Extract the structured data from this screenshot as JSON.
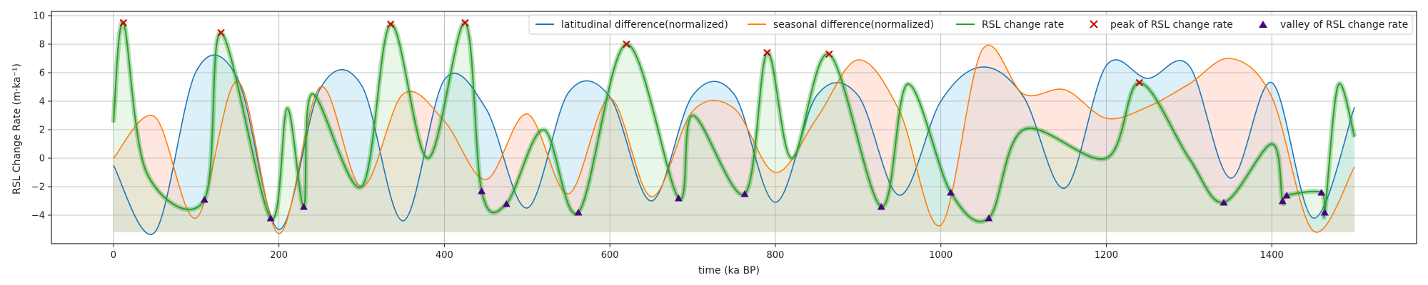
{
  "chart_data": {
    "type": "line",
    "xlabel": "time (ka BP)",
    "ylabel": "RSL Change Rate (m·ka⁻¹)",
    "xlim": [
      -75,
      1575
    ],
    "ylim": [
      -6.0,
      10.3
    ],
    "xticks": [
      0,
      200,
      400,
      600,
      800,
      1000,
      1200,
      1400
    ],
    "yticks": [
      -4,
      -2,
      0,
      2,
      4,
      6,
      8,
      10
    ],
    "grid": true,
    "legend_position": "top-right",
    "fill_floor": -5.2,
    "series": [
      {
        "name": "latitudinal difference(normalized)",
        "color": "#1f77b4",
        "x": [
          0,
          50,
          100,
          150,
          200,
          250,
          300,
          350,
          400,
          450,
          500,
          550,
          600,
          650,
          700,
          750,
          800,
          850,
          900,
          950,
          1000,
          1050,
          1100,
          1150,
          1200,
          1250,
          1300,
          1350,
          1400,
          1450,
          1500
        ],
        "values": [
          -0.5,
          -5.2,
          6.1,
          5.6,
          -5.0,
          4.9,
          5.1,
          -4.4,
          5.5,
          3.5,
          -3.5,
          4.6,
          4.3,
          -3.0,
          4.4,
          4.5,
          -3.1,
          4.4,
          4.4,
          -2.6,
          4.0,
          6.4,
          4.3,
          -2.1,
          6.5,
          5.6,
          6.5,
          -1.4,
          5.3,
          -4.2,
          3.6
        ]
      },
      {
        "name": "seasonal difference(normalized)",
        "color": "#ff7f0e",
        "x": [
          0,
          50,
          100,
          150,
          200,
          250,
          300,
          350,
          400,
          450,
          500,
          550,
          600,
          650,
          700,
          750,
          800,
          850,
          900,
          950,
          1000,
          1050,
          1100,
          1150,
          1200,
          1250,
          1300,
          1350,
          1400,
          1450,
          1500
        ],
        "values": [
          0.0,
          2.9,
          -4.2,
          5.4,
          -5.3,
          5.0,
          -2.0,
          4.5,
          2.6,
          -1.5,
          3.1,
          -2.5,
          4.2,
          -2.7,
          3.3,
          3.5,
          -1.0,
          2.8,
          6.9,
          3.3,
          -4.7,
          7.6,
          4.5,
          4.8,
          2.8,
          3.6,
          5.2,
          7.0,
          4.3,
          -5.1,
          -0.6
        ]
      },
      {
        "name": "RSL change rate",
        "color": "#2ca02c",
        "x": [
          0,
          12,
          40,
          110,
          130,
          190,
          210,
          230,
          240,
          300,
          335,
          380,
          425,
          445,
          475,
          520,
          562,
          620,
          683,
          700,
          763,
          790,
          820,
          865,
          928,
          960,
          1012,
          1058,
          1100,
          1200,
          1240,
          1300,
          1342,
          1400,
          1413,
          1418,
          1460,
          1464,
          1480,
          1500
        ],
        "values": [
          2.5,
          9.5,
          -1.0,
          -2.9,
          8.8,
          -4.2,
          3.5,
          -3.4,
          4.5,
          -2.0,
          9.4,
          0.0,
          9.5,
          -2.3,
          -3.2,
          2.0,
          -3.8,
          8.0,
          -2.8,
          3.0,
          -2.5,
          7.4,
          0.0,
          7.3,
          -3.4,
          5.2,
          -2.4,
          -4.2,
          2.0,
          0.0,
          5.3,
          0.0,
          -3.1,
          1.0,
          -3.0,
          -2.6,
          -2.4,
          -3.8,
          5.1,
          1.5
        ]
      }
    ],
    "peaks": {
      "name": "peak of RSL change rate",
      "color": "#cc0000",
      "x": [
        12,
        130,
        335,
        425,
        620,
        790,
        865,
        1240
      ],
      "y": [
        9.5,
        8.8,
        9.4,
        9.5,
        8.0,
        7.4,
        7.3,
        5.3
      ]
    },
    "valleys": {
      "name": "valley of RSL change rate",
      "color": "#4b0082",
      "x": [
        110,
        190,
        230,
        445,
        475,
        562,
        683,
        763,
        928,
        1012,
        1058,
        1342,
        1413,
        1418,
        1460,
        1464
      ],
      "y": [
        -2.9,
        -4.2,
        -3.4,
        -2.3,
        -3.2,
        -3.8,
        -2.8,
        -2.5,
        -3.4,
        -2.4,
        -4.2,
        -3.1,
        -3.0,
        -2.6,
        -2.4,
        -3.8
      ]
    }
  }
}
